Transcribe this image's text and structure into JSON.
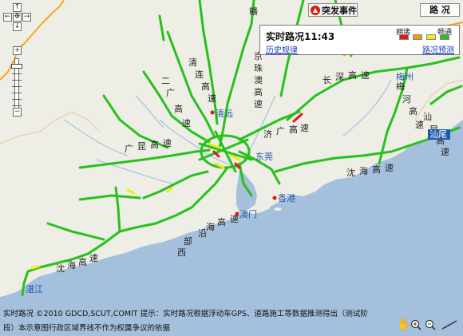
{
  "map": {
    "road_labels": [
      {
        "id": "beijing-zhuhai-expressway",
        "chars": [
          "京",
          "珠",
          "澳",
          "高",
          "速"
        ]
      },
      {
        "id": "guangzhou-qingyuan-expressway",
        "chars": [
          "清",
          "连",
          "高",
          "速"
        ]
      },
      {
        "id": "second-guangzhou-expressway",
        "chars": [
          "二",
          "广",
          "高",
          "速"
        ]
      },
      {
        "id": "changshen-expressway",
        "chars": [
          "长",
          "深",
          "高",
          "速"
        ]
      },
      {
        "id": "meiyong-expressway",
        "chars": [
          "梅",
          "河",
          "高",
          "速"
        ]
      },
      {
        "id": "jiguang-expressway",
        "chars": [
          "济",
          "广",
          "高",
          "速"
        ]
      },
      {
        "id": "shantou-expressway",
        "chars": [
          "汕",
          "昆",
          "高",
          "速"
        ]
      },
      {
        "id": "guangkun-expressway",
        "chars": [
          "广",
          "昆",
          "高",
          "速"
        ]
      },
      {
        "id": "shenhai-expressway-east",
        "chars": [
          "沈",
          "海",
          "高",
          "速"
        ]
      },
      {
        "id": "western-coast-expressway",
        "chars": [
          "西",
          "部",
          "沿",
          "海",
          "高",
          "速"
        ]
      },
      {
        "id": "shenhai-expressway-west",
        "chars": [
          "沈",
          "海",
          "高",
          "速"
        ]
      },
      {
        "id": "gan-expressway",
        "chars": [
          "赣"
        ]
      }
    ],
    "city_labels": [
      {
        "id": "qingyuan",
        "text": "清远"
      },
      {
        "id": "meizhou",
        "text": "梅州"
      },
      {
        "id": "shanwei",
        "text": "汕尾"
      },
      {
        "id": "dongguan",
        "text": "东莞"
      },
      {
        "id": "hong-kong",
        "text": "香港"
      },
      {
        "id": "macau",
        "text": "澳门"
      },
      {
        "id": "zhanjiang",
        "text": "湛江"
      }
    ]
  },
  "controls": {
    "incident_button": "突发事件",
    "road_status_button": "路 况",
    "nav": {
      "up": "↑",
      "down": "↓",
      "left": "←",
      "right": "→",
      "center": "✥",
      "zoom_in": "+",
      "zoom_out": "−"
    }
  },
  "info_panel": {
    "title": "实时路况11:43",
    "history_link": "历史规律",
    "forecast_link": "路况预测",
    "legend_congested": "拥堵",
    "legend_smooth": "畅通",
    "legend_colors": [
      "#e8141b",
      "#f59b0c",
      "#f3e81a",
      "#27c11c"
    ]
  },
  "footer": {
    "line1": "实时路况 ©2010 GDCD,SCUT,COMIT 提示：实时路况根据浮动车GPS、道路施工等数据推测得出（测试阶",
    "line2": "段）本示意图行政区域界线不作为权属争议的依据"
  },
  "colors": {
    "land": "#efeee6",
    "sea": "#a4c0dd",
    "smooth": "#27c11c",
    "slow": "#f3e81a",
    "congested": "#e8141b",
    "province_border": "#f5a623"
  }
}
